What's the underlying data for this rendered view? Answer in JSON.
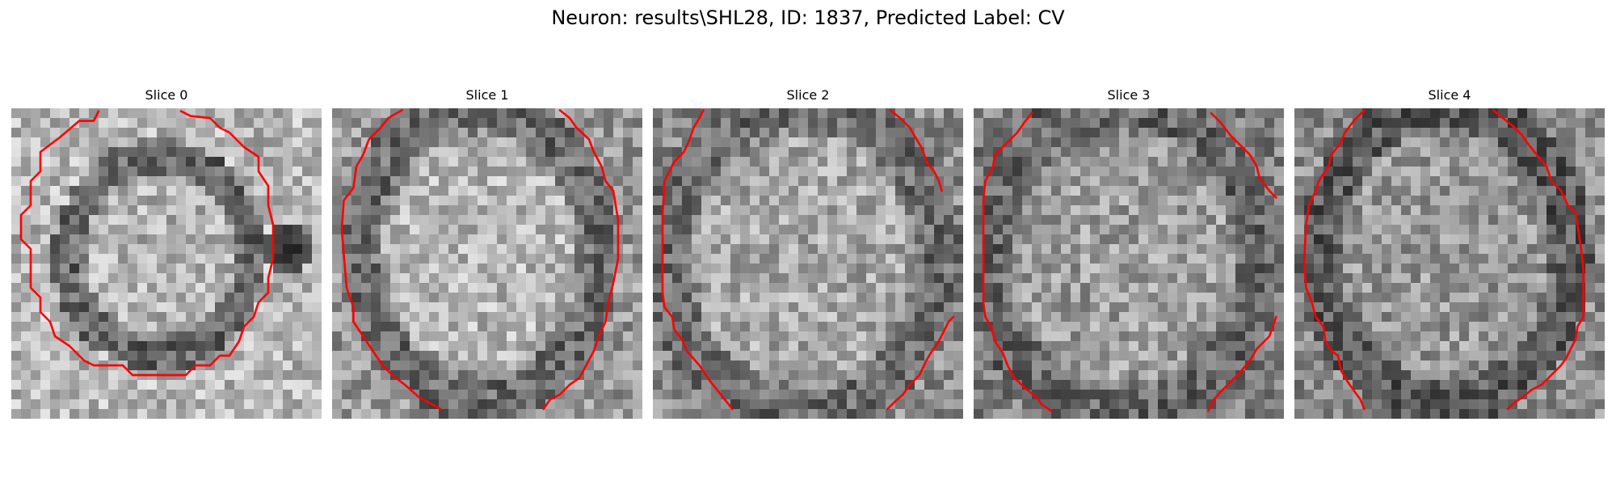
{
  "figure": {
    "title": "Neuron: results\\SHL28, ID: 1837, Predicted Label: CV"
  },
  "colors": {
    "contour": "#ff0000",
    "background": "#ffffff"
  },
  "panels": [
    {
      "title": "Slice 0"
    },
    {
      "title": "Slice 1"
    },
    {
      "title": "Slice 2"
    },
    {
      "title": "Slice 3"
    },
    {
      "title": "Slice 4"
    }
  ]
}
